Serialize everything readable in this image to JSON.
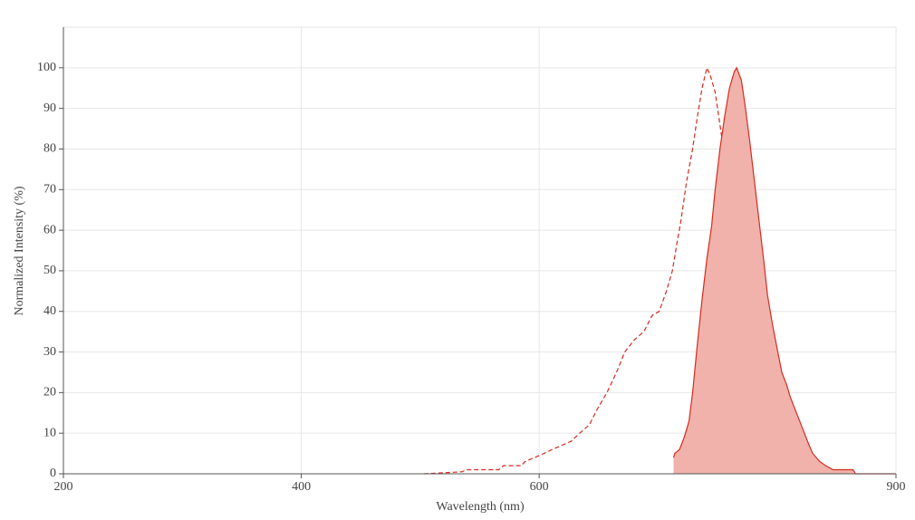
{
  "chart_data": {
    "type": "line",
    "x_label": "Wavelength (nm)",
    "y_label": "Normalized Intensity (%)",
    "xlim": [
      200,
      900
    ],
    "xticks": [
      200,
      400,
      600,
      900
    ],
    "ylim": [
      0,
      110
    ],
    "yticks": [
      0,
      10,
      20,
      30,
      40,
      50,
      60,
      70,
      80,
      90,
      100
    ],
    "grid": true,
    "series": [
      {
        "color": "#d62b1f",
        "dashed": true,
        "fill": false,
        "x": [
          503,
          535,
          539,
          566,
          570,
          585,
          588,
          596,
          604,
          611,
          619,
          627,
          634,
          642,
          649,
          657,
          665,
          672,
          680,
          688,
          695,
          701,
          707,
          712,
          716,
          719,
          724,
          729,
          733,
          737,
          741,
          744,
          748,
          752,
          756,
          760,
          764,
          767,
          771,
          775,
          778,
          782,
          786
        ],
        "values": [
          0,
          0.5,
          1,
          1,
          2,
          2,
          3,
          4,
          5,
          6,
          7,
          8,
          10,
          12,
          16,
          20,
          25,
          30,
          33,
          35,
          39,
          40,
          45,
          50,
          57,
          62,
          72,
          80,
          88,
          95,
          100,
          98,
          94,
          86,
          78,
          68,
          56,
          46,
          37,
          25,
          19,
          15,
          11
        ]
      },
      {
        "color": "#d62b1f",
        "fill_color": "#f0b2aa",
        "dashed": false,
        "fill": true,
        "x": [
          713,
          714,
          718,
          722,
          726,
          729,
          733,
          737,
          741,
          745,
          748,
          752,
          756,
          760,
          764,
          766,
          770,
          773,
          777,
          781,
          785,
          789,
          792,
          796,
          800,
          804,
          808,
          811,
          815,
          819,
          823,
          827,
          830,
          836,
          841,
          847,
          852,
          864,
          866,
          877,
          899
        ],
        "values": [
          4,
          5,
          6,
          9,
          13,
          20,
          32,
          43,
          53,
          61,
          70,
          80,
          88,
          95,
          99,
          100,
          97,
          91,
          82,
          72,
          62,
          52,
          44,
          37,
          31,
          25,
          22,
          19,
          16,
          13,
          10,
          7,
          5,
          3,
          2,
          1,
          1,
          1,
          0,
          0,
          0
        ]
      }
    ]
  }
}
